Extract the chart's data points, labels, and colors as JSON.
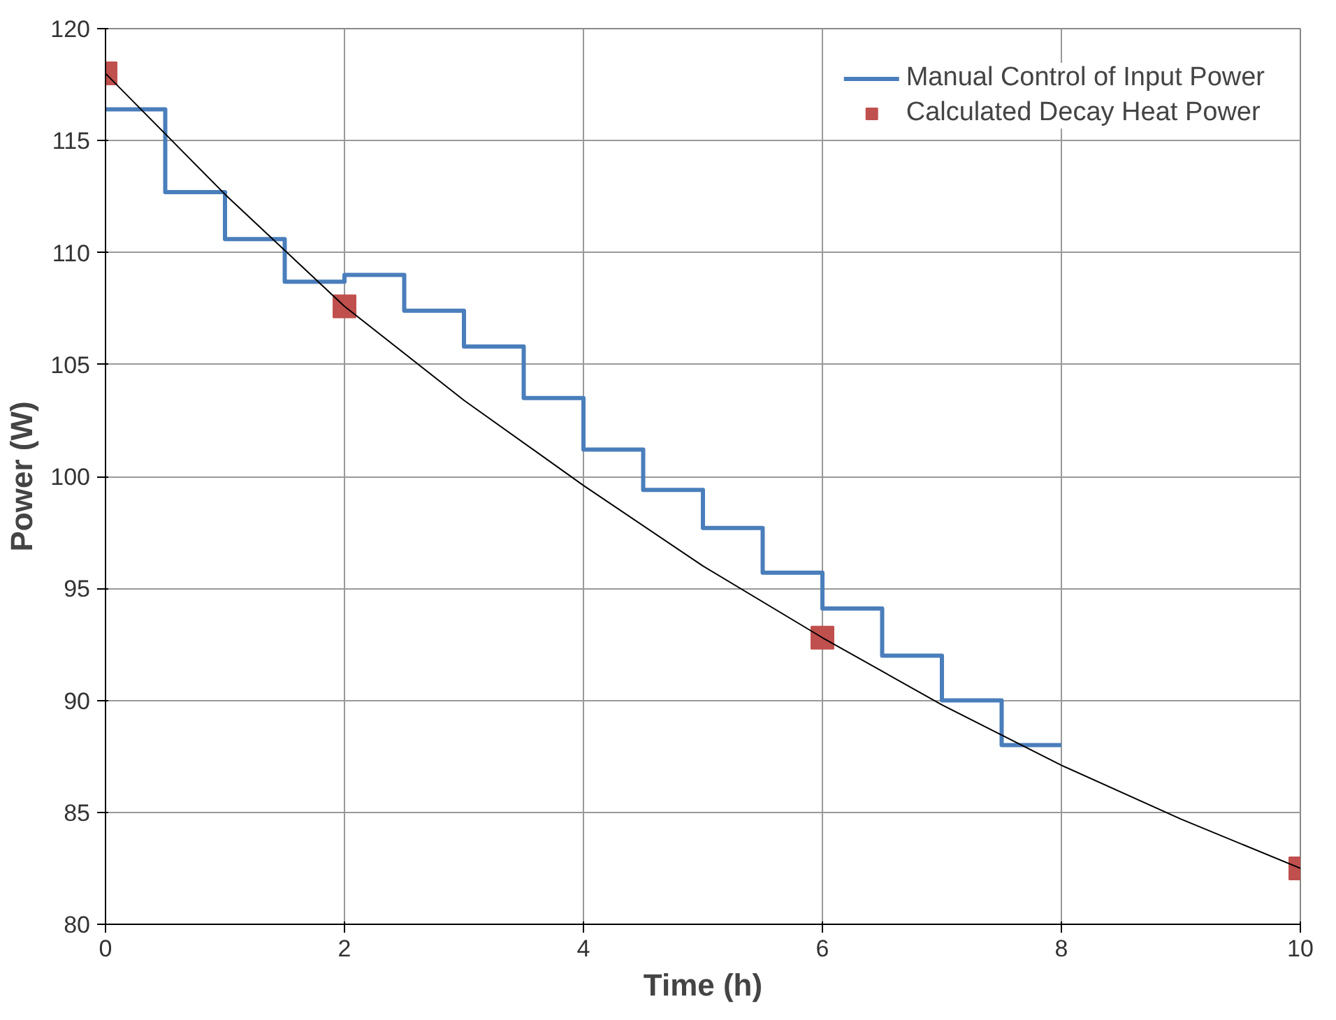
{
  "chart_data": {
    "type": "line",
    "xlabel": "Time (h)",
    "ylabel": "Power (W)",
    "xlim": [
      0,
      10
    ],
    "xticks": [
      0,
      2,
      4,
      6,
      8,
      10
    ],
    "ylim": [
      80,
      120
    ],
    "yticks": [
      80,
      85,
      90,
      95,
      100,
      105,
      110,
      115,
      120
    ],
    "grid": true,
    "legend": "top right",
    "series": [
      {
        "type": "step",
        "name": "Manual Control of Input Power",
        "color": "#4a7ebb",
        "x": [
          0,
          0.5,
          1,
          1.5,
          2,
          2.5,
          3,
          3.5,
          4,
          4.5,
          5,
          5.5,
          6,
          6.5,
          7,
          7.5,
          8
        ],
        "values": [
          116.4,
          112.7,
          110.6,
          108.7,
          109.0,
          107.4,
          105.8,
          103.5,
          101.2,
          99.4,
          97.7,
          95.7,
          94.1,
          92.0,
          90.0,
          88.0,
          88.0
        ]
      },
      {
        "type": "scatter",
        "name": "Calculated Decay Heat Power",
        "color": "#c0504d",
        "marker": "square",
        "x": [
          0,
          2,
          6,
          10
        ],
        "values": [
          118,
          107.6,
          92.8,
          82.5
        ]
      },
      {
        "color": "#000000",
        "x": [
          0,
          1,
          2,
          3,
          4,
          5,
          6,
          7,
          8,
          9,
          10
        ],
        "values": [
          118,
          112.6,
          107.6,
          103.4,
          99.6,
          96.0,
          92.8,
          89.8,
          87.1,
          84.7,
          82.5
        ]
      }
    ]
  }
}
